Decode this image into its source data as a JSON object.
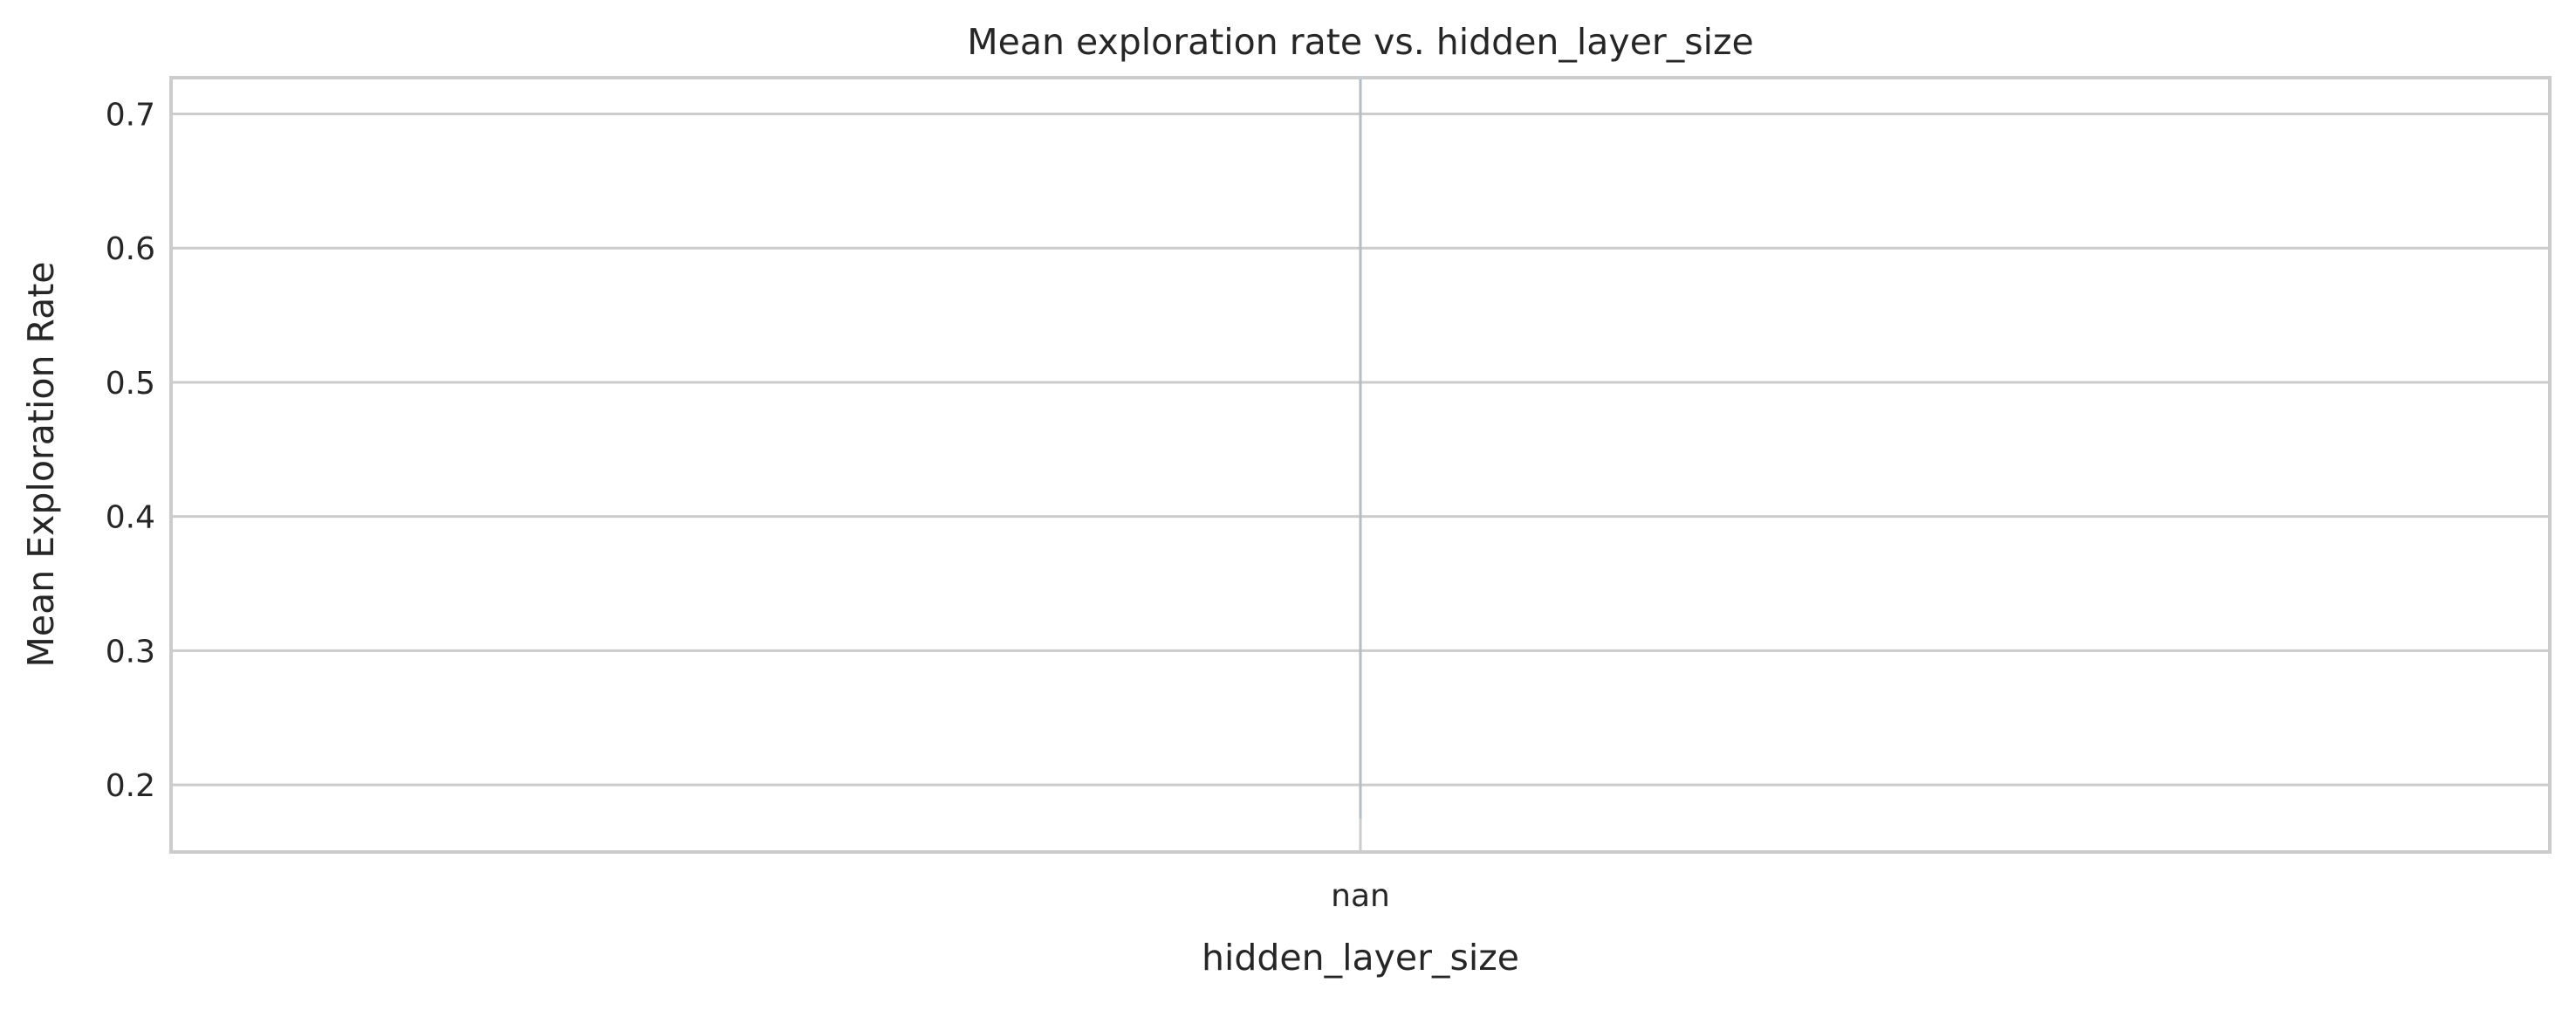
{
  "chart_data": {
    "type": "box",
    "title": "Mean exploration rate vs. hidden_layer_size",
    "xlabel": "hidden_layer_size",
    "ylabel": "Mean Exploration Rate",
    "categories": [
      "nan"
    ],
    "ylim": [
      0.15,
      0.727
    ],
    "yticks": [
      0.2,
      0.3,
      0.4,
      0.5,
      0.6,
      0.7
    ],
    "ytick_labels": [
      "0.2",
      "0.3",
      "0.4",
      "0.5",
      "0.6",
      "0.7"
    ],
    "series": [
      {
        "category": "nan",
        "whisker_low": 0.175,
        "whisker_high": 0.727
      }
    ],
    "grid": true,
    "colors": {
      "grid": "#cccccc",
      "spine": "#cccccc",
      "whisker": "#b4bcc6",
      "text": "#262626"
    }
  }
}
